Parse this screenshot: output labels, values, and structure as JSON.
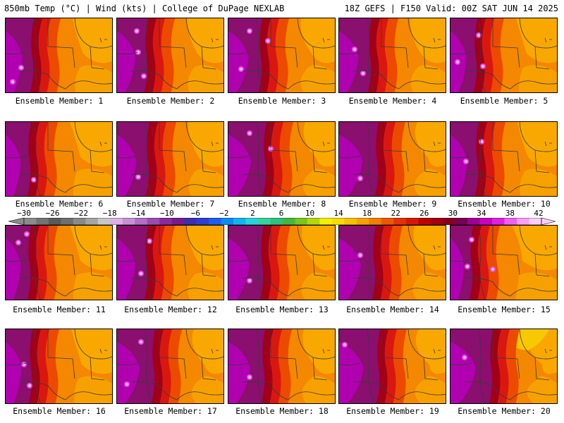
{
  "header": {
    "left": "850mb Temp (°C) | Wind (kts) | College of DuPage NEXLAB",
    "right": "18Z GEFS | F150 Valid: 00Z SAT JUN 14 2025"
  },
  "colorbar": {
    "labels": [
      "−30",
      "−26",
      "−22",
      "−18",
      "−14",
      "−10",
      "−6",
      "−2",
      "2",
      "6",
      "10",
      "14",
      "18",
      "22",
      "26",
      "30",
      "34",
      "38",
      "42"
    ],
    "colors": [
      "#8c8c8c",
      "#737373",
      "#5a5a5a",
      "#6f6f6f",
      "#8a8a8a",
      "#a5a5a5",
      "#c7c7c7",
      "#dcb0e6",
      "#c891d6",
      "#b26ec3",
      "#9a4bb0",
      "#8a2a9e",
      "#7a1a8e",
      "#3c2eb0",
      "#2c3fd0",
      "#1e5cf0",
      "#0b8cf0",
      "#12b4f0",
      "#28d2dc",
      "#36d2a0",
      "#2cc27a",
      "#44b83a",
      "#78c81a",
      "#b4d80e",
      "#f0f000",
      "#f8dc00",
      "#f8c000",
      "#f8a000",
      "#f08000",
      "#ec5a00",
      "#e43200",
      "#d81800",
      "#c00000",
      "#a00010",
      "#880020",
      "#780050",
      "#a00090",
      "#c800c0",
      "#e020e0",
      "#f060f0",
      "#f8a0f8",
      "#fcd0fc"
    ]
  },
  "panels": [
    {
      "label": "Ensemble Member: 1"
    },
    {
      "label": "Ensemble Member: 2"
    },
    {
      "label": "Ensemble Member: 3"
    },
    {
      "label": "Ensemble Member: 4"
    },
    {
      "label": "Ensemble Member: 5"
    },
    {
      "label": "Ensemble Member: 6"
    },
    {
      "label": "Ensemble Member: 7"
    },
    {
      "label": "Ensemble Member: 8"
    },
    {
      "label": "Ensemble Member: 9"
    },
    {
      "label": "Ensemble Member: 10"
    },
    {
      "label": "Ensemble Member: 11"
    },
    {
      "label": "Ensemble Member: 12"
    },
    {
      "label": "Ensemble Member: 13"
    },
    {
      "label": "Ensemble Member: 14"
    },
    {
      "label": "Ensemble Member: 15"
    },
    {
      "label": "Ensemble Member: 16"
    },
    {
      "label": "Ensemble Member: 17"
    },
    {
      "label": "Ensemble Member: 18"
    },
    {
      "label": "Ensemble Member: 19"
    },
    {
      "label": "Ensemble Member: 20"
    }
  ],
  "palette": {
    "magenta": "#b000b0",
    "purple": "#8a0f6e",
    "darkred": "#a00018",
    "red": "#d81810",
    "redorange": "#ec4a00",
    "orange": "#f48800",
    "lightorange": "#f8a800",
    "yellow": "#f8c800",
    "contour": "#3a3a3a",
    "hotspot": "#f050f0"
  }
}
